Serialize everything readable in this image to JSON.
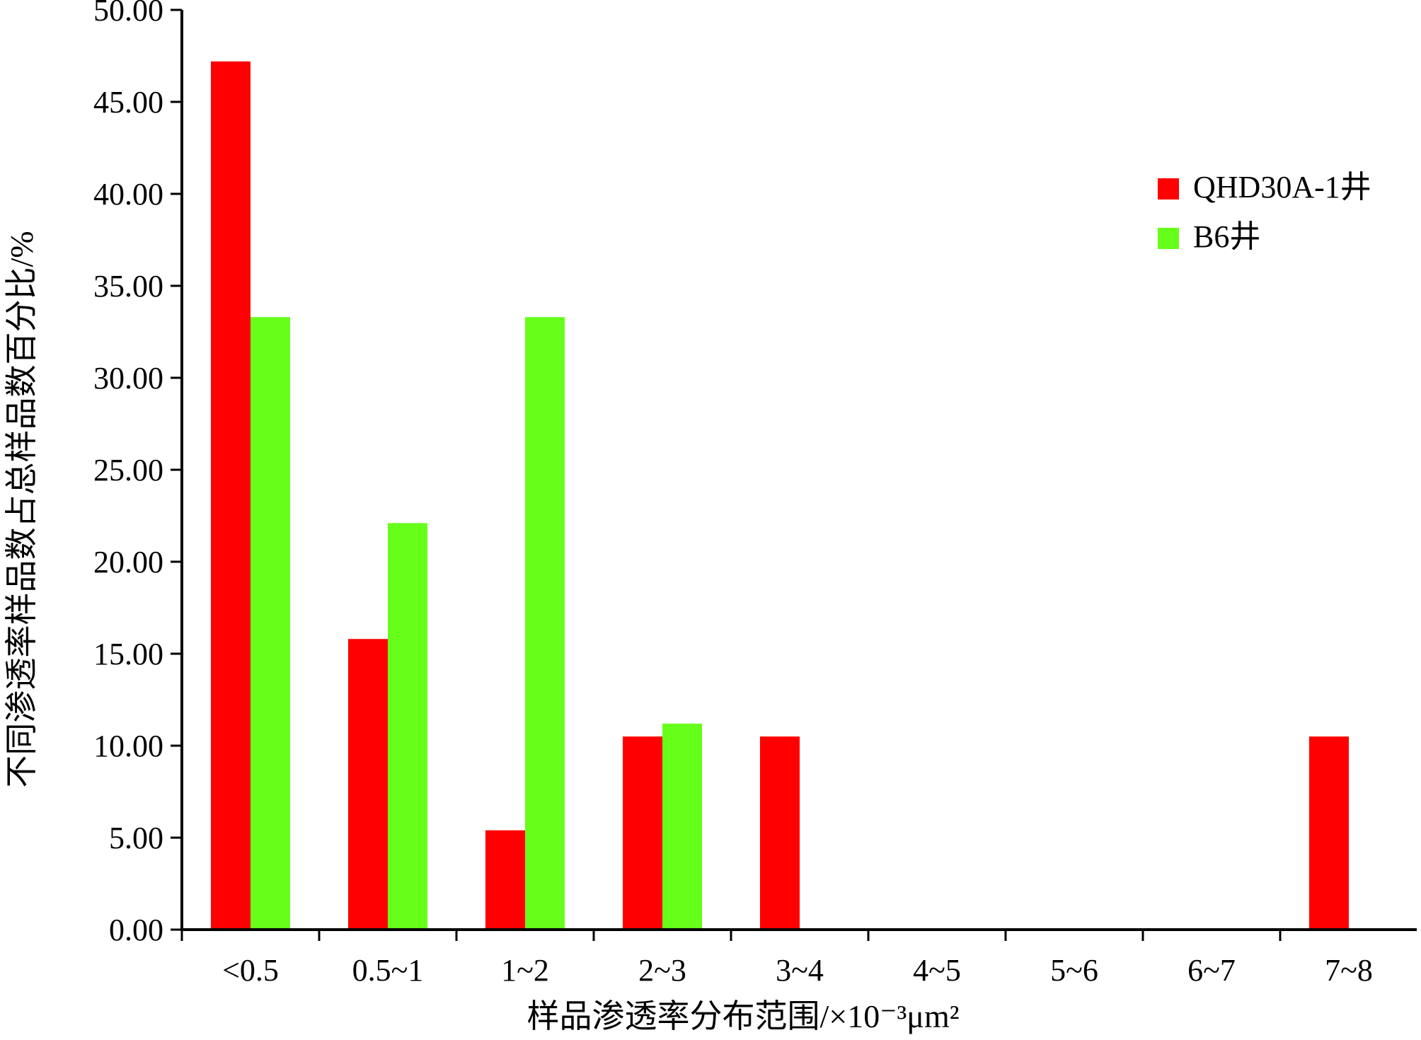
{
  "chart_data": {
    "type": "bar",
    "categories": [
      "<0.5",
      "0.5~1",
      "1~2",
      "2~3",
      "3~4",
      "4~5",
      "5~6",
      "6~7",
      "7~8"
    ],
    "series": [
      {
        "name": "QHD30A-1井",
        "color": "#ff0000",
        "values": [
          47.2,
          15.8,
          5.4,
          10.5,
          10.5,
          0,
          0,
          0,
          10.5
        ]
      },
      {
        "name": "B6井",
        "color": "#66ff1a",
        "values": [
          33.3,
          22.1,
          33.3,
          11.2,
          0,
          0,
          0,
          0,
          0
        ]
      }
    ],
    "xlabel": "样品渗透率分布范围/×10⁻³μm²",
    "ylabel": "不同渗透率样品数占总样品数百分比/%",
    "ylim": [
      0,
      50
    ],
    "yticks": [
      "0.00",
      "5.00",
      "10.00",
      "15.00",
      "20.00",
      "25.00",
      "30.00",
      "35.00",
      "40.00",
      "45.00",
      "50.00"
    ],
    "grid": false,
    "legend_position": "top-right"
  }
}
